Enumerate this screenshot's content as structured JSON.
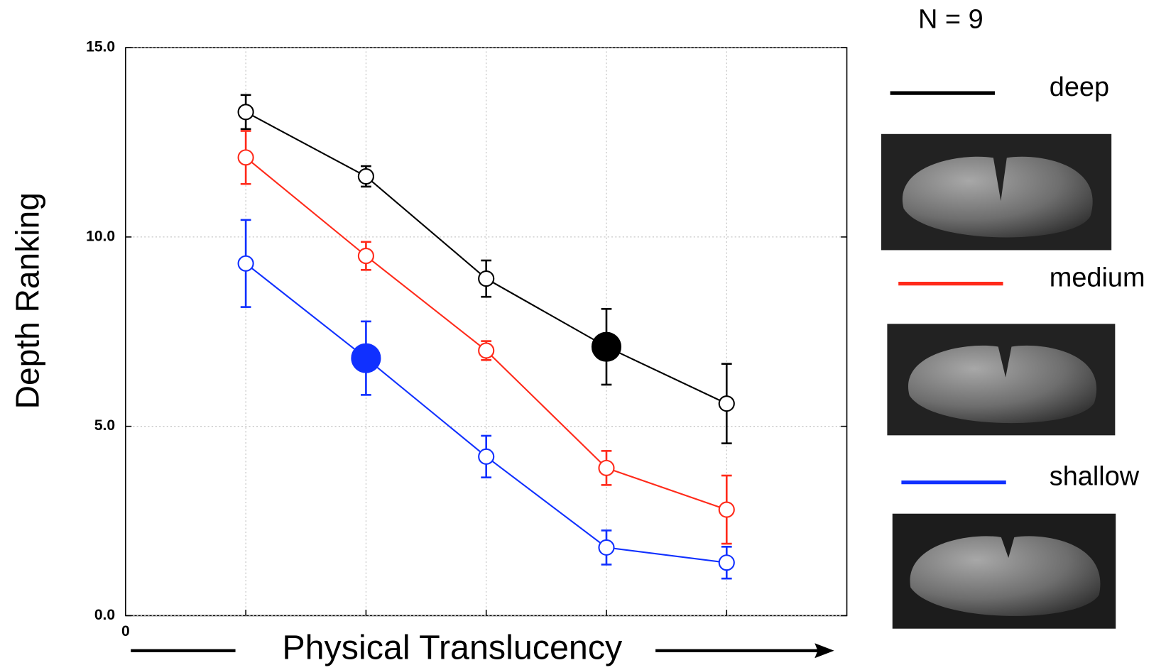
{
  "chart_data": {
    "type": "line",
    "y_label": "Depth Ranking",
    "x_label": "Physical Translucency",
    "annotation": "N = 9",
    "x": [
      1,
      2,
      3,
      4,
      5
    ],
    "xlim": [
      0,
      6
    ],
    "xticks": [
      0
    ],
    "ylim": [
      0,
      15
    ],
    "yticks": [
      {
        "value": 0,
        "label": "0.0"
      },
      {
        "value": 5,
        "label": "5.0"
      },
      {
        "value": 10,
        "label": "10.0"
      },
      {
        "value": 15,
        "label": "15.0"
      }
    ],
    "grid": true,
    "legend": "right",
    "series": [
      {
        "name": "deep",
        "color": "#000000",
        "values": [
          13.3,
          11.6,
          8.9,
          7.1,
          5.6
        ],
        "errors": [
          0.45,
          0.27,
          0.48,
          1.0,
          1.05
        ],
        "highlight": 3
      },
      {
        "name": "medium",
        "color": "#ff2a1a",
        "values": [
          12.1,
          9.5,
          7.0,
          3.9,
          2.8
        ],
        "errors": [
          0.7,
          0.37,
          0.25,
          0.45,
          0.9
        ]
      },
      {
        "name": "shallow",
        "color": "#1030ff",
        "values": [
          9.3,
          6.8,
          4.2,
          1.8,
          1.4
        ],
        "errors": [
          1.15,
          0.97,
          0.55,
          0.45,
          0.42
        ],
        "highlight": 1
      }
    ]
  }
}
